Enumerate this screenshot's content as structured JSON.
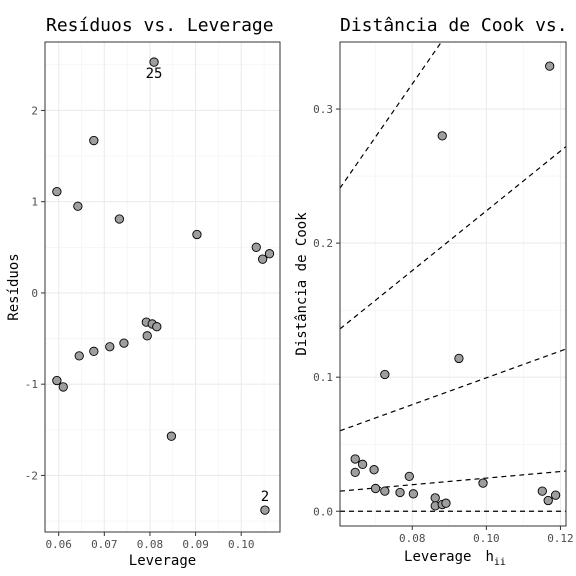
{
  "chart_data": [
    {
      "type": "scatter",
      "title": "Resíduos  vs. Leverage",
      "xlabel": "Leverage",
      "ylabel": "Resíduos",
      "xlim": [
        0.057,
        0.1085
      ],
      "ylim": [
        -2.62,
        2.75
      ],
      "xticks": [
        0.06,
        0.07,
        0.08,
        0.09,
        0.1
      ],
      "xtick_labels": [
        "0.06",
        "0.07",
        "0.08",
        "0.09",
        "0.10"
      ],
      "yticks": [
        -2,
        -1,
        0,
        1,
        2
      ],
      "ytick_labels": [
        "-2",
        "-1",
        "0",
        "1",
        "2"
      ],
      "grid": true,
      "points": [
        {
          "x": 0.0596,
          "y": 1.11
        },
        {
          "x": 0.0642,
          "y": 0.95
        },
        {
          "x": 0.0677,
          "y": 1.67
        },
        {
          "x": 0.0733,
          "y": 0.81
        },
        {
          "x": 0.0809,
          "y": 2.53
        },
        {
          "x": 0.0903,
          "y": 0.64
        },
        {
          "x": 0.1033,
          "y": 0.5
        },
        {
          "x": 0.1047,
          "y": 0.37
        },
        {
          "x": 0.1062,
          "y": 0.43
        },
        {
          "x": 0.0792,
          "y": -0.32
        },
        {
          "x": 0.0805,
          "y": -0.34
        },
        {
          "x": 0.0815,
          "y": -0.37
        },
        {
          "x": 0.0794,
          "y": -0.47
        },
        {
          "x": 0.0743,
          "y": -0.55
        },
        {
          "x": 0.0712,
          "y": -0.59
        },
        {
          "x": 0.0677,
          "y": -0.64
        },
        {
          "x": 0.0645,
          "y": -0.69
        },
        {
          "x": 0.0596,
          "y": -0.96
        },
        {
          "x": 0.061,
          "y": -1.03
        },
        {
          "x": 0.0847,
          "y": -1.57
        },
        {
          "x": 0.1052,
          "y": -2.38
        }
      ],
      "annotations": [
        {
          "label": "25",
          "x": 0.0809,
          "y": 2.53,
          "pos": "below"
        },
        {
          "label": "2",
          "x": 0.1052,
          "y": -2.38,
          "pos": "above"
        }
      ]
    },
    {
      "type": "scatter",
      "title": "Distância de Cook vs. Leverage",
      "xlabel": "Leverage",
      "xlabel_symbol": "h",
      "xlabel_subscript": "ii",
      "ylabel": "Distância de Cook",
      "xlim": [
        0.0605,
        0.1215
      ],
      "ylim": [
        -0.011,
        0.35
      ],
      "xticks": [
        0.08,
        0.1,
        0.12
      ],
      "xtick_labels": [
        "0.08",
        "0.10",
        "0.12"
      ],
      "yticks": [
        0.0,
        0.1,
        0.2,
        0.3
      ],
      "ytick_labels": [
        "0.0",
        "0.1",
        "0.2",
        "0.3"
      ],
      "grid": true,
      "reference_lines": [
        {
          "style": "dashed",
          "kind": "horizontal",
          "y": 0
        },
        {
          "style": "dashed",
          "kind": "contour",
          "x": [
            0.0605,
            0.1215
          ],
          "y": [
            0.015,
            0.03
          ]
        },
        {
          "style": "dashed",
          "kind": "contour",
          "x": [
            0.0605,
            0.1215
          ],
          "y": [
            0.06,
            0.121
          ]
        },
        {
          "style": "dashed",
          "kind": "contour",
          "x": [
            0.0605,
            0.1215
          ],
          "y": [
            0.136,
            0.272
          ]
        },
        {
          "style": "dashed",
          "kind": "contour",
          "x": [
            0.0605,
            0.1215
          ],
          "y": [
            0.241,
            0.484
          ]
        }
      ],
      "points": [
        {
          "x": 0.0646,
          "y": 0.039
        },
        {
          "x": 0.0666,
          "y": 0.035
        },
        {
          "x": 0.0646,
          "y": 0.029
        },
        {
          "x": 0.0697,
          "y": 0.031
        },
        {
          "x": 0.0701,
          "y": 0.017
        },
        {
          "x": 0.0726,
          "y": 0.015
        },
        {
          "x": 0.0726,
          "y": 0.102
        },
        {
          "x": 0.0767,
          "y": 0.014
        },
        {
          "x": 0.0792,
          "y": 0.026
        },
        {
          "x": 0.0803,
          "y": 0.013
        },
        {
          "x": 0.0862,
          "y": 0.01
        },
        {
          "x": 0.0862,
          "y": 0.004
        },
        {
          "x": 0.0881,
          "y": 0.28
        },
        {
          "x": 0.0881,
          "y": 0.005
        },
        {
          "x": 0.0891,
          "y": 0.006
        },
        {
          "x": 0.0926,
          "y": 0.114
        },
        {
          "x": 0.0991,
          "y": 0.021
        },
        {
          "x": 0.1151,
          "y": 0.015
        },
        {
          "x": 0.1171,
          "y": 0.332
        },
        {
          "x": 0.1167,
          "y": 0.008
        },
        {
          "x": 0.1187,
          "y": 0.012
        }
      ]
    }
  ]
}
